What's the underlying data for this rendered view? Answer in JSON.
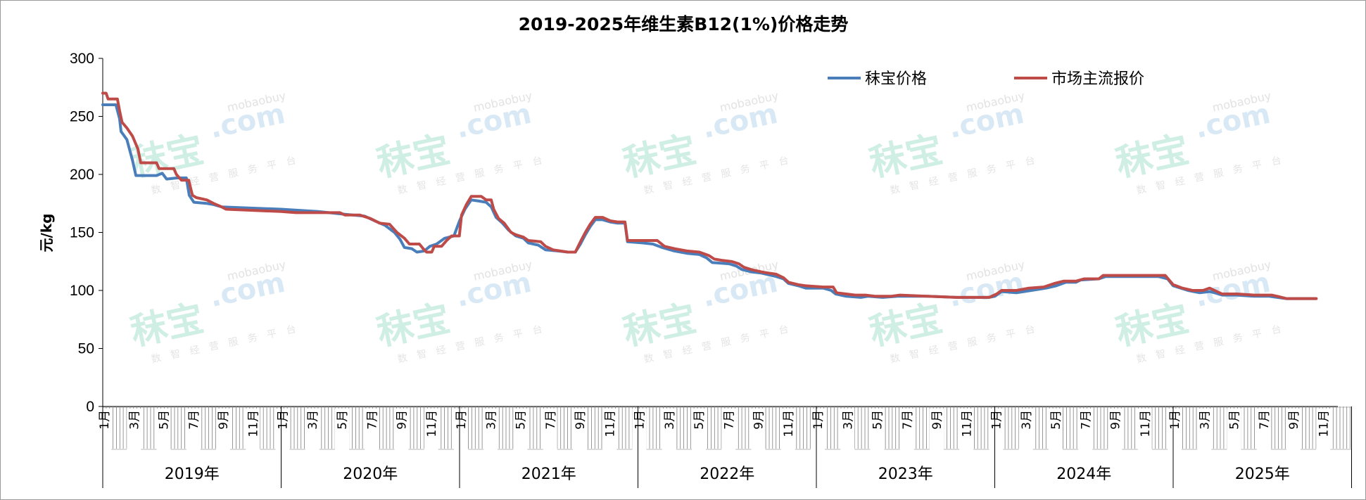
{
  "chart_data": {
    "type": "line",
    "title": "2019-2025年维生素B12(1%)价格走势",
    "ylabel": "元/kg",
    "ylim": [
      0,
      300
    ],
    "yticks": [
      "0",
      "50",
      "100",
      "150",
      "200",
      "250",
      "300"
    ],
    "legend_position": "top-right",
    "years": [
      "2019年",
      "2020年",
      "2021年",
      "2022年",
      "2023年",
      "2024年",
      "2025年"
    ],
    "month_labels": [
      "1月",
      "3月",
      "5月",
      "7月",
      "9月",
      "11月"
    ],
    "series": [
      {
        "name": "秣宝价格",
        "color": "#4a7ebb",
        "points": [
          [
            "2019-01-01",
            260
          ],
          [
            "2019-01-28",
            260
          ],
          [
            "2019-02-05",
            248
          ],
          [
            "2019-02-08",
            237
          ],
          [
            "2019-02-20",
            230
          ],
          [
            "2019-03-01",
            212
          ],
          [
            "2019-03-08",
            199
          ],
          [
            "2019-04-20",
            199
          ],
          [
            "2019-05-01",
            201
          ],
          [
            "2019-05-10",
            196
          ],
          [
            "2019-06-01",
            197
          ],
          [
            "2019-06-20",
            197
          ],
          [
            "2019-06-26",
            182
          ],
          [
            "2019-07-05",
            176
          ],
          [
            "2019-08-01",
            175
          ],
          [
            "2019-08-15",
            174
          ],
          [
            "2019-09-01",
            172
          ],
          [
            "2019-12-31",
            170
          ],
          [
            "2020-03-15",
            168
          ],
          [
            "2020-05-01",
            166
          ],
          [
            "2020-06-20",
            164
          ],
          [
            "2020-07-10",
            160
          ],
          [
            "2020-08-01",
            156
          ],
          [
            "2020-08-20",
            150
          ],
          [
            "2020-09-01",
            144
          ],
          [
            "2020-09-10",
            137
          ],
          [
            "2020-09-25",
            136
          ],
          [
            "2020-10-05",
            133
          ],
          [
            "2020-10-20",
            134
          ],
          [
            "2020-11-01",
            138
          ],
          [
            "2020-11-15",
            140
          ],
          [
            "2020-12-01",
            145
          ],
          [
            "2020-12-20",
            147
          ],
          [
            "2021-01-01",
            160
          ],
          [
            "2021-01-12",
            170
          ],
          [
            "2021-01-25",
            178
          ],
          [
            "2021-02-10",
            177
          ],
          [
            "2021-02-25",
            176
          ],
          [
            "2021-03-05",
            172
          ],
          [
            "2021-03-15",
            163
          ],
          [
            "2021-03-28",
            158
          ],
          [
            "2021-04-10",
            152
          ],
          [
            "2021-04-25",
            147
          ],
          [
            "2021-05-10",
            145
          ],
          [
            "2021-05-20",
            141
          ],
          [
            "2021-06-10",
            139
          ],
          [
            "2021-06-25",
            135
          ],
          [
            "2021-07-20",
            134
          ],
          [
            "2021-08-10",
            133
          ],
          [
            "2021-08-25",
            133
          ],
          [
            "2021-09-05",
            140
          ],
          [
            "2021-09-15",
            148
          ],
          [
            "2021-09-25",
            155
          ],
          [
            "2021-10-05",
            161
          ],
          [
            "2021-10-20",
            161
          ],
          [
            "2021-11-05",
            159
          ],
          [
            "2021-11-20",
            158
          ],
          [
            "2021-12-05",
            158
          ],
          [
            "2021-12-10",
            142
          ],
          [
            "2022-01-10",
            141
          ],
          [
            "2022-02-01",
            140
          ],
          [
            "2022-02-20",
            137
          ],
          [
            "2022-03-15",
            134
          ],
          [
            "2022-04-10",
            132
          ],
          [
            "2022-05-05",
            131
          ],
          [
            "2022-05-20",
            128
          ],
          [
            "2022-06-01",
            124
          ],
          [
            "2022-07-05",
            123
          ],
          [
            "2022-07-20",
            121
          ],
          [
            "2022-08-01",
            118
          ],
          [
            "2022-08-20",
            116
          ],
          [
            "2022-09-10",
            115
          ],
          [
            "2022-10-10",
            112
          ],
          [
            "2022-10-25",
            110
          ],
          [
            "2022-11-05",
            106
          ],
          [
            "2022-11-25",
            104
          ],
          [
            "2022-12-10",
            102
          ],
          [
            "2023-01-15",
            102
          ],
          [
            "2023-02-01",
            100
          ],
          [
            "2023-02-10",
            97
          ],
          [
            "2023-03-01",
            95
          ],
          [
            "2023-04-01",
            94
          ],
          [
            "2023-04-15",
            95
          ],
          [
            "2023-05-15",
            94
          ],
          [
            "2023-06-15",
            95
          ],
          [
            "2023-07-15",
            95
          ],
          [
            "2023-08-15",
            95
          ],
          [
            "2023-10-15",
            94
          ],
          [
            "2023-12-20",
            94
          ],
          [
            "2024-01-01",
            95
          ],
          [
            "2024-01-15",
            99
          ],
          [
            "2024-02-15",
            98
          ],
          [
            "2024-03-15",
            100
          ],
          [
            "2024-04-15",
            102
          ],
          [
            "2024-05-05",
            104
          ],
          [
            "2024-05-25",
            107
          ],
          [
            "2024-06-15",
            107
          ],
          [
            "2024-06-25",
            109
          ],
          [
            "2024-08-01",
            110
          ],
          [
            "2024-08-15",
            112
          ],
          [
            "2024-12-01",
            112
          ],
          [
            "2024-12-20",
            110
          ],
          [
            "2025-01-01",
            104
          ],
          [
            "2025-02-01",
            100
          ],
          [
            "2025-02-25",
            98
          ],
          [
            "2025-03-15",
            99
          ],
          [
            "2025-03-25",
            98
          ],
          [
            "2025-04-10",
            96
          ],
          [
            "2025-05-10",
            96
          ],
          [
            "2025-06-15",
            95
          ],
          [
            "2025-07-15",
            95
          ],
          [
            "2025-08-01",
            94
          ],
          [
            "2025-08-20",
            93
          ],
          [
            "2025-10-20",
            93
          ]
        ]
      },
      {
        "name": "市场主流报价",
        "color": "#be4b48",
        "points": [
          [
            "2019-01-01",
            270
          ],
          [
            "2019-01-08",
            270
          ],
          [
            "2019-01-12",
            265
          ],
          [
            "2019-01-31",
            265
          ],
          [
            "2019-02-05",
            255
          ],
          [
            "2019-02-10",
            245
          ],
          [
            "2019-02-20",
            240
          ],
          [
            "2019-03-01",
            233
          ],
          [
            "2019-03-12",
            222
          ],
          [
            "2019-03-18",
            210
          ],
          [
            "2019-04-20",
            210
          ],
          [
            "2019-04-25",
            205
          ],
          [
            "2019-05-25",
            205
          ],
          [
            "2019-05-30",
            200
          ],
          [
            "2019-06-10",
            195
          ],
          [
            "2019-06-25",
            195
          ],
          [
            "2019-07-02",
            182
          ],
          [
            "2019-07-10",
            180
          ],
          [
            "2019-08-01",
            178
          ],
          [
            "2019-08-15",
            175
          ],
          [
            "2019-09-01",
            172
          ],
          [
            "2019-09-10",
            170
          ],
          [
            "2019-12-31",
            168
          ],
          [
            "2020-02-01",
            167
          ],
          [
            "2020-04-30",
            167
          ],
          [
            "2020-05-10",
            165
          ],
          [
            "2020-06-10",
            165
          ],
          [
            "2020-07-01",
            162
          ],
          [
            "2020-07-20",
            158
          ],
          [
            "2020-08-10",
            157
          ],
          [
            "2020-08-25",
            150
          ],
          [
            "2020-09-10",
            145
          ],
          [
            "2020-09-20",
            140
          ],
          [
            "2020-10-10",
            140
          ],
          [
            "2020-10-20",
            135
          ],
          [
            "2020-10-25",
            133
          ],
          [
            "2020-11-05",
            133
          ],
          [
            "2020-11-10",
            138
          ],
          [
            "2020-11-25",
            138
          ],
          [
            "2020-12-05",
            143
          ],
          [
            "2020-12-15",
            147
          ],
          [
            "2020-12-31",
            147
          ],
          [
            "2021-01-05",
            165
          ],
          [
            "2021-01-15",
            174
          ],
          [
            "2021-01-25",
            181
          ],
          [
            "2021-02-15",
            181
          ],
          [
            "2021-02-25",
            178
          ],
          [
            "2021-03-05",
            178
          ],
          [
            "2021-03-10",
            170
          ],
          [
            "2021-03-20",
            162
          ],
          [
            "2021-04-01",
            158
          ],
          [
            "2021-04-15",
            150
          ],
          [
            "2021-04-25",
            148
          ],
          [
            "2021-05-10",
            146
          ],
          [
            "2021-05-20",
            143
          ],
          [
            "2021-06-15",
            142
          ],
          [
            "2021-06-25",
            138
          ],
          [
            "2021-07-10",
            135
          ],
          [
            "2021-07-25",
            134
          ],
          [
            "2021-08-10",
            133
          ],
          [
            "2021-08-25",
            133
          ],
          [
            "2021-09-05",
            142
          ],
          [
            "2021-09-15",
            150
          ],
          [
            "2021-09-25",
            157
          ],
          [
            "2021-10-05",
            163
          ],
          [
            "2021-10-20",
            163
          ],
          [
            "2021-11-05",
            160
          ],
          [
            "2021-11-20",
            159
          ],
          [
            "2021-12-05",
            159
          ],
          [
            "2021-12-10",
            143
          ],
          [
            "2022-02-10",
            143
          ],
          [
            "2022-02-25",
            138
          ],
          [
            "2022-03-15",
            136
          ],
          [
            "2022-04-10",
            134
          ],
          [
            "2022-05-05",
            133
          ],
          [
            "2022-05-25",
            130
          ],
          [
            "2022-06-05",
            127
          ],
          [
            "2022-06-20",
            126
          ],
          [
            "2022-07-10",
            125
          ],
          [
            "2022-07-25",
            123
          ],
          [
            "2022-08-05",
            120
          ],
          [
            "2022-08-20",
            118
          ],
          [
            "2022-09-10",
            116
          ],
          [
            "2022-09-25",
            115
          ],
          [
            "2022-10-10",
            114
          ],
          [
            "2022-10-25",
            111
          ],
          [
            "2022-11-05",
            107
          ],
          [
            "2022-11-25",
            105
          ],
          [
            "2022-12-10",
            104
          ],
          [
            "2023-01-15",
            103
          ],
          [
            "2023-02-05",
            103
          ],
          [
            "2023-02-12",
            98
          ],
          [
            "2023-03-01",
            97
          ],
          [
            "2023-03-20",
            96
          ],
          [
            "2023-04-10",
            96
          ],
          [
            "2023-05-01",
            95
          ],
          [
            "2023-06-01",
            95
          ],
          [
            "2023-06-20",
            96
          ],
          [
            "2023-08-15",
            95
          ],
          [
            "2023-10-15",
            94
          ],
          [
            "2023-12-20",
            94
          ],
          [
            "2024-01-05",
            97
          ],
          [
            "2024-01-15",
            100
          ],
          [
            "2024-02-15",
            100
          ],
          [
            "2024-03-10",
            102
          ],
          [
            "2024-04-10",
            103
          ],
          [
            "2024-05-01",
            106
          ],
          [
            "2024-05-20",
            108
          ],
          [
            "2024-06-15",
            108
          ],
          [
            "2024-07-01",
            110
          ],
          [
            "2024-08-01",
            110
          ],
          [
            "2024-08-10",
            113
          ],
          [
            "2024-12-15",
            113
          ],
          [
            "2025-01-01",
            105
          ],
          [
            "2025-01-20",
            102
          ],
          [
            "2025-02-10",
            100
          ],
          [
            "2025-03-01",
            100
          ],
          [
            "2025-03-15",
            102
          ],
          [
            "2025-03-25",
            100
          ],
          [
            "2025-04-10",
            97
          ],
          [
            "2025-05-10",
            97
          ],
          [
            "2025-06-15",
            96
          ],
          [
            "2025-07-20",
            96
          ],
          [
            "2025-08-01",
            95
          ],
          [
            "2025-08-20",
            93
          ],
          [
            "2025-10-20",
            93
          ]
        ]
      }
    ]
  },
  "watermark": {
    "logo_text": "秣宝",
    "domain_text": ".com",
    "brand_text": "mobaobuy",
    "tagline": "数智经营服务平台"
  }
}
